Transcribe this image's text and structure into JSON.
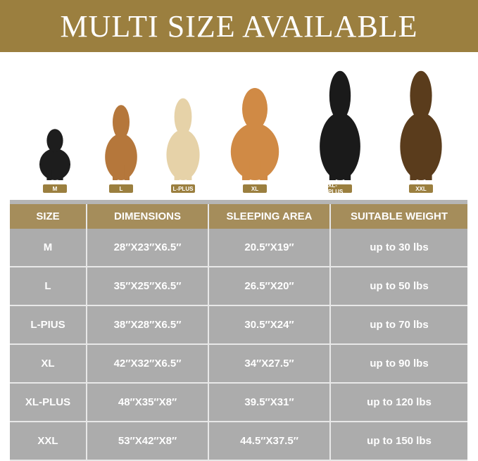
{
  "banner": {
    "title": "MULTI SIZE AVAILABLE"
  },
  "sizes": [
    {
      "label": "M",
      "color": "#1d1d1d"
    },
    {
      "label": "L",
      "color": "#b5773b"
    },
    {
      "label": "L-PLUS",
      "color": "#e6d2a8"
    },
    {
      "label": "XL",
      "color": "#d08a45"
    },
    {
      "label": "XL-PLUS",
      "color": "#1a1a1a"
    },
    {
      "label": "XXL",
      "color": "#5a3c1c"
    }
  ],
  "table": {
    "headers": [
      "SIZE",
      "DIMENSIONS",
      "SLEEPING AREA",
      "SUITABLE WEIGHT"
    ],
    "rows": [
      [
        "M",
        "28″X23″X6.5″",
        "20.5″X19″",
        "up to 30 lbs"
      ],
      [
        "L",
        "35″X25″X6.5″",
        "26.5″X20″",
        "up to 50 lbs"
      ],
      [
        "L-PIUS",
        "38″X28″X6.5″",
        "30.5″X24″",
        "up to 70 lbs"
      ],
      [
        "XL",
        "42″X32″X6.5″",
        "34″X27.5″",
        "up to 90 lbs"
      ],
      [
        "XL-PLUS",
        "48″X35″X8″",
        "39.5″X31″",
        "up to 120 lbs"
      ],
      [
        "XXL",
        "53″X42″X8″",
        "44.5″X37.5″",
        "up to 150 lbs"
      ]
    ]
  }
}
